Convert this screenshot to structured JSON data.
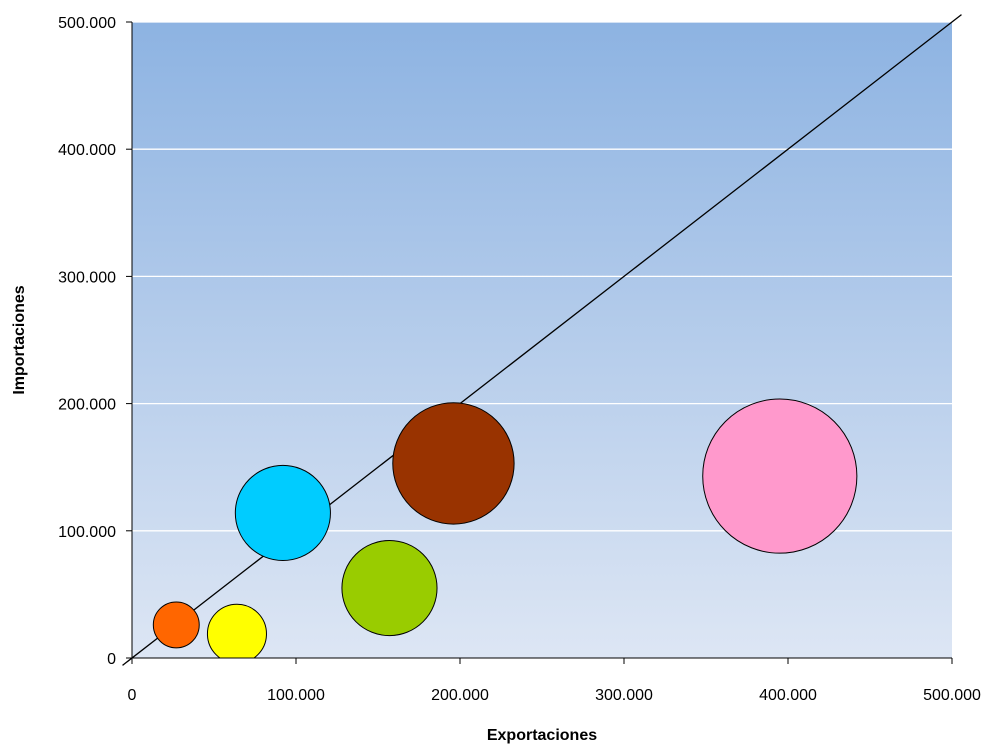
{
  "chart_data": {
    "type": "bubble",
    "title": "",
    "xlabel": "Exportaciones",
    "ylabel": "Importaciones",
    "xlim": [
      0,
      500000
    ],
    "ylim": [
      0,
      500000
    ],
    "x_ticks": [
      0,
      100000,
      200000,
      300000,
      400000,
      500000
    ],
    "y_ticks": [
      0,
      100000,
      200000,
      300000,
      400000,
      500000
    ],
    "x_tick_labels": [
      "0",
      "100.000",
      "200.000",
      "300.000",
      "400.000",
      "500.000"
    ],
    "y_tick_labels": [
      "0",
      "100.000",
      "200.000",
      "300.000",
      "400.000",
      "500.000"
    ],
    "grid": {
      "horizontal": true,
      "vertical": false,
      "color": "#ffffff"
    },
    "legend": "none",
    "background_gradient": {
      "top": "#8db3e2",
      "bottom": "#dde6f4"
    },
    "reference_line": {
      "type": "diagonal",
      "from": [
        0,
        0
      ],
      "to": [
        500000,
        500000
      ],
      "color": "#000000"
    },
    "points": [
      {
        "x": 27000,
        "y": 26000,
        "size": 14000,
        "color": "#ff6600"
      },
      {
        "x": 64000,
        "y": 19000,
        "size": 18000,
        "color": "#ffff00"
      },
      {
        "x": 92000,
        "y": 114000,
        "size": 29000,
        "color": "#00ccff"
      },
      {
        "x": 157000,
        "y": 55000,
        "size": 29000,
        "color": "#99cc00"
      },
      {
        "x": 196000,
        "y": 153000,
        "size": 37000,
        "color": "#993300"
      },
      {
        "x": 395000,
        "y": 143000,
        "size": 47000,
        "color": "#ff99cc"
      }
    ]
  }
}
